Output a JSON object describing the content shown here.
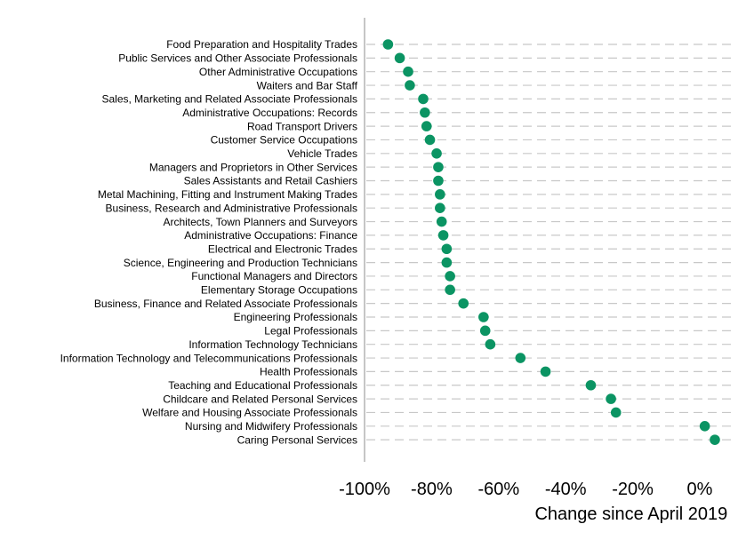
{
  "chart_data": {
    "type": "scatter",
    "orientation": "horizontal-dot-plot",
    "title": "",
    "xlabel": "Change since April 2019",
    "ylabel": "",
    "xlim": [
      -100,
      10
    ],
    "x_ticks": [
      -100,
      -80,
      -60,
      -40,
      -20,
      0
    ],
    "x_tick_labels": [
      "-100%",
      "-80%",
      "-60%",
      "-40%",
      "-20%",
      "0%"
    ],
    "grid": "horizontal dashed gridlines",
    "legend": "none",
    "marker_color": "#0b9463",
    "grid_color": "#c8c8c8",
    "axis_color": "#a0a0a0",
    "categories": [
      "Food Preparation and Hospitality Trades",
      "Public Services and Other Associate Professionals",
      "Other Administrative Occupations",
      "Waiters and Bar Staff",
      "Sales, Marketing and Related Associate Professionals",
      "Administrative Occupations: Records",
      "Road Transport Drivers",
      "Customer Service Occupations",
      "Vehicle Trades",
      "Managers and Proprietors in Other Services",
      "Sales Assistants and Retail Cashiers",
      "Metal Machining, Fitting and Instrument Making Trades",
      "Business, Research and Administrative Professionals",
      "Architects, Town Planners and Surveyors",
      "Administrative Occupations: Finance",
      "Electrical and Electronic Trades",
      "Science, Engineering and Production Technicians",
      "Functional Managers and Directors",
      "Elementary Storage Occupations",
      "Business, Finance and Related Associate Professionals",
      "Engineering Professionals",
      "Legal Professionals",
      "Information Technology Technicians",
      "Information Technology and Telecommunications Professionals",
      "Health Professionals",
      "Teaching and Educational Professionals",
      "Childcare and Related Personal Services",
      "Welfare and Housing Associate Professionals",
      "Nursing and Midwifery Professionals",
      "Caring Personal Services"
    ],
    "values": [
      -93,
      -89.5,
      -87,
      -86.5,
      -82.5,
      -82,
      -81.5,
      -80.5,
      -78.5,
      -78,
      -78,
      -77.5,
      -77.5,
      -77,
      -76.5,
      -75.5,
      -75.5,
      -74.5,
      -74.5,
      -70.5,
      -64.5,
      -64,
      -62.5,
      -53.5,
      -46,
      -32.5,
      -26.5,
      -25,
      1.5,
      4.5
    ]
  }
}
